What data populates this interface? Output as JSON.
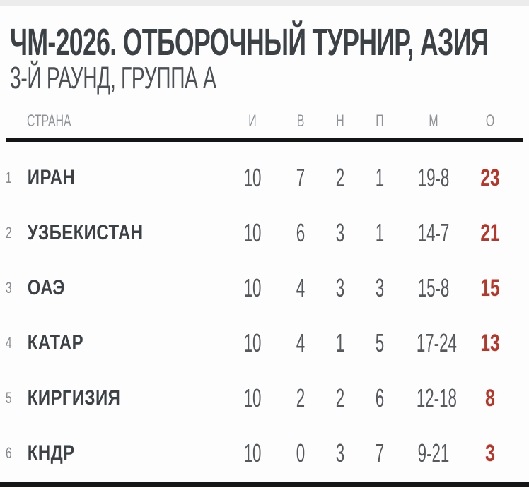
{
  "page": {
    "title": "ЧМ-2026. ОТБОРОЧНЫЙ ТУРНИР, АЗИЯ",
    "subtitle": "3-Й РАУНД, ГРУППА А"
  },
  "table": {
    "headers": {
      "country": "СТРАНА",
      "played": "И",
      "wins": "В",
      "draws": "Н",
      "losses": "П",
      "goals": "М",
      "points": "О"
    },
    "rows": [
      {
        "rank": "1",
        "country": "ИРАН",
        "played": "10",
        "wins": "7",
        "draws": "2",
        "losses": "1",
        "goals": "19-8",
        "points": "23"
      },
      {
        "rank": "2",
        "country": "УЗБЕКИСТАН",
        "played": "10",
        "wins": "6",
        "draws": "3",
        "losses": "1",
        "goals": "14-7",
        "points": "21"
      },
      {
        "rank": "3",
        "country": "ОАЭ",
        "played": "10",
        "wins": "4",
        "draws": "3",
        "losses": "3",
        "goals": "15-8",
        "points": "15"
      },
      {
        "rank": "4",
        "country": "КАТАР",
        "played": "10",
        "wins": "4",
        "draws": "1",
        "losses": "5",
        "goals": "17-24",
        "points": "13"
      },
      {
        "rank": "5",
        "country": "КИРГИЗИЯ",
        "played": "10",
        "wins": "2",
        "draws": "2",
        "losses": "6",
        "goals": "12-18",
        "points": "8"
      },
      {
        "rank": "6",
        "country": "КНДР",
        "played": "10",
        "wins": "0",
        "draws": "3",
        "losses": "7",
        "goals": "9-21",
        "points": "3"
      }
    ]
  },
  "colors": {
    "accent_red": "#b5372a",
    "title_dark": "#3c4145",
    "stat_gray": "#55585c",
    "muted_gray": "#8f9397",
    "rule_black": "#141517",
    "top_strip": "#ececec"
  }
}
